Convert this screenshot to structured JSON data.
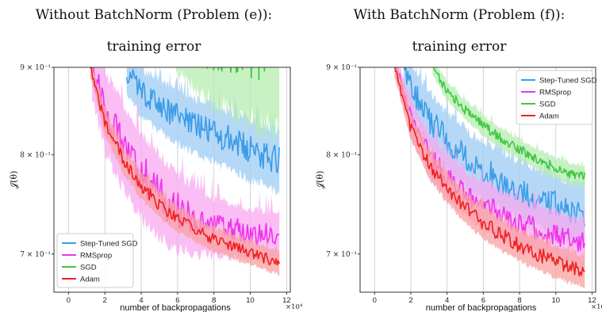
{
  "chart_data": [
    {
      "type": "line",
      "title": "Without BatchNorm (Problem (e)):",
      "subtitle": "training error",
      "xlabel": "number of backpropagations",
      "x_multiplier_label": "×10⁴",
      "ylabel": "𝒥(θ)",
      "scale_y": "log",
      "grid": "vertical",
      "legend": "lower-left",
      "xlim": [
        -0.8,
        12.2
      ],
      "ylim": [
        0.665,
        0.9
      ],
      "x_ticks": [
        0,
        2,
        4,
        6,
        8,
        10,
        12
      ],
      "x_tick_labels": [
        "0",
        "2",
        "4",
        "6",
        "8",
        "10",
        "12"
      ],
      "y_ticks": [
        0.9,
        0.8,
        0.7
      ],
      "y_tick_labels": [
        "9 × 10⁻¹",
        "8 × 10⁻¹",
        "7 × 10⁻¹"
      ],
      "legend_entries": [
        "Step-Tuned SGD",
        "RMSprop",
        "SGD",
        "Adam"
      ],
      "series": [
        {
          "name": "Step-Tuned SGD",
          "color": "#3b9ce8",
          "band_color": "#9ccbf3",
          "x": [
            3.2,
            4,
            5,
            6,
            7,
            8,
            9,
            10,
            11,
            11.6
          ],
          "y": [
            0.895,
            0.87,
            0.855,
            0.842,
            0.832,
            0.823,
            0.815,
            0.806,
            0.798,
            0.794
          ],
          "band": [
            0.03,
            0.03,
            0.032,
            0.033,
            0.034,
            0.034,
            0.035,
            0.035,
            0.035,
            0.035
          ]
        },
        {
          "name": "RMSprop",
          "color": "#f030f0",
          "band_color": "#f8a8f0",
          "x": [
            1.3,
            2,
            3,
            4,
            5,
            6,
            7,
            8,
            9,
            10,
            11,
            11.6
          ],
          "y": [
            0.9,
            0.85,
            0.81,
            0.78,
            0.757,
            0.742,
            0.733,
            0.727,
            0.723,
            0.72,
            0.718,
            0.72
          ],
          "band": [
            0.04,
            0.05,
            0.05,
            0.05,
            0.045,
            0.04,
            0.035,
            0.03,
            0.028,
            0.026,
            0.025,
            0.025
          ]
        },
        {
          "name": "SGD",
          "color": "#40c840",
          "band_color": "#b6ecb0",
          "x": [
            5.2,
            6,
            7,
            8,
            9,
            10,
            11,
            11.6
          ],
          "y": [
            0.93,
            0.93,
            0.93,
            0.93,
            0.93,
            0.93,
            0.93,
            0.93
          ],
          "band": [
            0.01,
            0.04,
            0.06,
            0.08,
            0.09,
            0.1,
            0.11,
            0.112
          ]
        },
        {
          "name": "Adam",
          "color": "#f02020",
          "band_color": "#f8a0a0",
          "x": [
            1.2,
            2,
            3,
            4,
            5,
            6,
            7,
            8,
            9,
            10,
            11,
            11.6
          ],
          "y": [
            0.9,
            0.835,
            0.795,
            0.768,
            0.748,
            0.734,
            0.723,
            0.714,
            0.707,
            0.701,
            0.695,
            0.692
          ],
          "band": [
            0.012,
            0.015,
            0.015,
            0.015,
            0.014,
            0.013,
            0.012,
            0.012,
            0.012,
            0.012,
            0.012,
            0.012
          ]
        }
      ]
    },
    {
      "type": "line",
      "title": "With BatchNorm (Problem (f)):",
      "subtitle": "training error",
      "xlabel": "number of backpropagations",
      "x_multiplier_label": "×10⁴",
      "ylabel": "𝒥(θ)",
      "scale_y": "log",
      "grid": "vertical",
      "legend": "top-right",
      "xlim": [
        -0.8,
        12.2
      ],
      "ylim": [
        0.665,
        0.9
      ],
      "x_ticks": [
        0,
        2,
        4,
        6,
        8,
        10,
        12
      ],
      "x_tick_labels": [
        "0",
        "2",
        "4",
        "6",
        "8",
        "10",
        "12"
      ],
      "y_ticks": [
        0.9,
        0.8,
        0.7
      ],
      "y_tick_labels": [
        "9 × 10⁻¹",
        "8 × 10⁻¹",
        "7 × 10⁻¹"
      ],
      "legend_entries": [
        "Step-Tuned SGD",
        "RMSprop",
        "SGD",
        "Adam"
      ],
      "series": [
        {
          "name": "Step-Tuned SGD",
          "color": "#3b9ce8",
          "band_color": "#9ccbf3",
          "x": [
            1.6,
            2,
            3,
            4,
            5,
            6,
            7,
            8,
            9,
            10,
            11,
            11.6
          ],
          "y": [
            0.9,
            0.875,
            0.84,
            0.815,
            0.797,
            0.783,
            0.772,
            0.763,
            0.755,
            0.748,
            0.742,
            0.74
          ],
          "band": [
            0.03,
            0.032,
            0.034,
            0.034,
            0.034,
            0.033,
            0.033,
            0.032,
            0.032,
            0.031,
            0.031,
            0.031
          ]
        },
        {
          "name": "RMSprop",
          "color": "#f030f0",
          "band_color": "#f8a8f0",
          "x": [
            1.2,
            2,
            3,
            4,
            5,
            6,
            7,
            8,
            9,
            10,
            11,
            11.6
          ],
          "y": [
            0.9,
            0.84,
            0.8,
            0.775,
            0.76,
            0.748,
            0.738,
            0.73,
            0.724,
            0.718,
            0.713,
            0.71
          ],
          "band": [
            0.015,
            0.022,
            0.025,
            0.025,
            0.025,
            0.025,
            0.025,
            0.025,
            0.025,
            0.025,
            0.025,
            0.025
          ]
        },
        {
          "name": "SGD",
          "color": "#40c840",
          "band_color": "#b6ecb0",
          "x": [
            3.2,
            4,
            5,
            6,
            7,
            8,
            9,
            10,
            11,
            11.6
          ],
          "y": [
            0.9,
            0.872,
            0.85,
            0.832,
            0.818,
            0.806,
            0.795,
            0.786,
            0.779,
            0.776
          ],
          "band": [
            0.01,
            0.012,
            0.012,
            0.012,
            0.012,
            0.012,
            0.012,
            0.012,
            0.012,
            0.012
          ]
        },
        {
          "name": "Adam",
          "color": "#f02020",
          "band_color": "#f8a0a0",
          "x": [
            1.1,
            2,
            3,
            4,
            5,
            6,
            7,
            8,
            9,
            10,
            11,
            11.6
          ],
          "y": [
            0.9,
            0.83,
            0.79,
            0.765,
            0.745,
            0.73,
            0.718,
            0.708,
            0.7,
            0.693,
            0.687,
            0.684
          ],
          "band": [
            0.012,
            0.015,
            0.016,
            0.016,
            0.016,
            0.016,
            0.016,
            0.016,
            0.016,
            0.016,
            0.016,
            0.016
          ]
        }
      ]
    }
  ]
}
